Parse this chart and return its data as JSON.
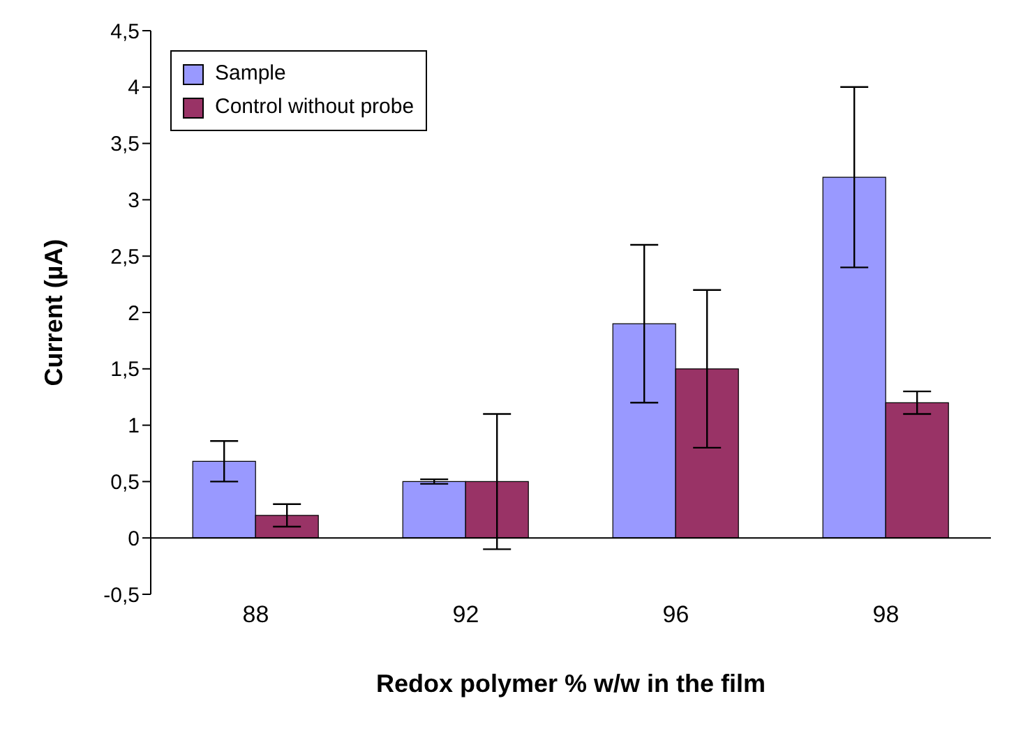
{
  "chart_data": {
    "type": "bar",
    "xlabel": "Redox polymer % w/w in the film",
    "ylabel": "Current (µA)",
    "categories": [
      "88",
      "92",
      "96",
      "98"
    ],
    "series": [
      {
        "name": "Sample",
        "color": "#9999ff",
        "values": [
          0.68,
          0.5,
          1.9,
          3.2
        ],
        "errors": [
          0.18,
          0.02,
          0.7,
          0.8
        ]
      },
      {
        "name": "Control without probe",
        "color": "#993366",
        "values": [
          0.2,
          0.5,
          1.5,
          1.2
        ],
        "errors": [
          0.1,
          0.6,
          0.7,
          0.1
        ]
      }
    ],
    "ylim": [
      -0.5,
      4.5
    ],
    "yticks": [
      {
        "value": -0.5,
        "label": "-0,5"
      },
      0,
      {
        "value": 0.5,
        "label": "0,5"
      },
      1,
      {
        "value": 1.5,
        "label": "1,5"
      },
      2,
      {
        "value": 2.5,
        "label": "2,5"
      },
      3,
      {
        "value": 3.5,
        "label": "3,5"
      },
      4,
      {
        "value": 4.5,
        "label": "4,5"
      }
    ],
    "legend": "top left"
  }
}
